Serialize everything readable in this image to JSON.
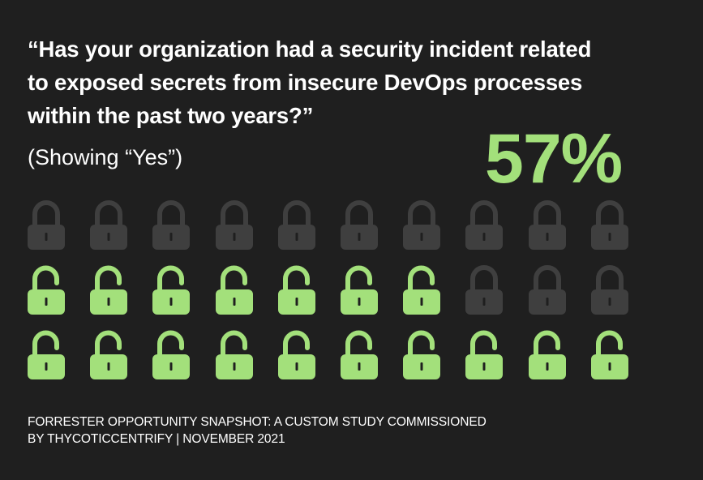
{
  "question": {
    "line1": "“Has your organization had a security incident related",
    "line2": "to exposed secrets from insecure DevOps processes",
    "line3": "within the past two years?”"
  },
  "subtitle": "(Showing “Yes”)",
  "stat": "57%",
  "colors": {
    "background": "#1f1f1f",
    "accent_green": "#a3e07b",
    "locked_gray": "#3f3f3f",
    "keyhole": "#1f1f1f",
    "text": "#ffffff"
  },
  "footer": {
    "line1": "FORRESTER OPPORTUNITY SNAPSHOT: A CUSTOM STUDY COMMISSIONED",
    "line2": "BY THYCOTICCENTRIFY | NOVEMBER 2021"
  },
  "chart_data": {
    "type": "pictogram",
    "title": "“Has your organization had a security incident related to exposed secrets from insecure DevOps processes within the past two years?”",
    "subtitle": "(Showing “Yes”)",
    "headline_value": "57%",
    "total_icons": 30,
    "highlighted_icons": 17,
    "rows": 3,
    "columns": 10,
    "icon_legend": [
      {
        "icon": "unlocked-padlock",
        "color": "#a3e07b",
        "meaning": "Yes",
        "count": 17
      },
      {
        "icon": "locked-padlock",
        "color": "#3f3f3f",
        "meaning": "Not yes",
        "count": 13
      }
    ],
    "grid": [
      [
        "locked",
        "locked",
        "locked",
        "locked",
        "locked",
        "locked",
        "locked",
        "locked",
        "locked",
        "locked"
      ],
      [
        "unlocked",
        "unlocked",
        "unlocked",
        "unlocked",
        "unlocked",
        "unlocked",
        "unlocked",
        "locked",
        "locked",
        "locked"
      ],
      [
        "unlocked",
        "unlocked",
        "unlocked",
        "unlocked",
        "unlocked",
        "unlocked",
        "unlocked",
        "unlocked",
        "unlocked",
        "unlocked"
      ]
    ],
    "source": "FORRESTER OPPORTUNITY SNAPSHOT: A CUSTOM STUDY COMMISSIONED BY THYCOTICCENTRIFY | NOVEMBER 2021"
  }
}
